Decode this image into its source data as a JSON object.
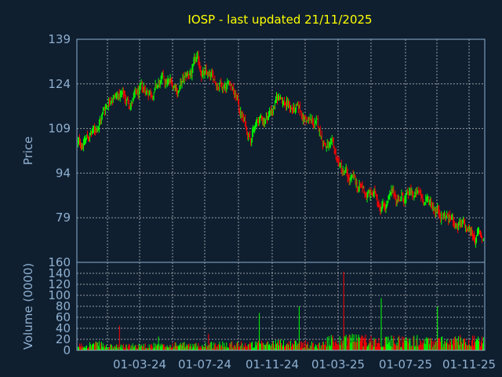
{
  "chart_data": [
    {
      "type": "candlestick",
      "title": "IOSP - last updated 21/11/2025",
      "ylabel": "Price",
      "ylim": [
        64,
        139
      ],
      "yticks": [
        "139",
        "124",
        "109",
        "94",
        "79"
      ],
      "xticks": [
        "01-03-24",
        "01-07-24",
        "01-11-24",
        "01-03-25",
        "01-07-25",
        "01-11-25"
      ],
      "grid": true,
      "up_color": "#00ff00",
      "down_color": "#ff0000",
      "series": [
        {
          "x": [
            "11-23",
            "12-23",
            "01-24",
            "02-24",
            "03-24",
            "04-24",
            "05-24",
            "06-24",
            "07-24",
            "08-24",
            "09-24",
            "10-24",
            "11-24",
            "12-24",
            "01-25",
            "02-25",
            "03-25",
            "04-25",
            "05-25",
            "06-25",
            "07-25",
            "08-25",
            "09-25",
            "10-25",
            "11-25"
          ],
          "close": [
            104,
            108,
            122,
            118,
            121,
            124,
            123,
            130,
            124,
            126,
            108,
            112,
            120,
            114,
            110,
            101,
            91,
            87,
            85,
            86,
            86,
            84,
            79,
            74,
            72
          ]
        }
      ]
    },
    {
      "type": "bar",
      "ylabel": "Volume (0000)",
      "ylim": [
        0,
        160
      ],
      "yticks": [
        "160",
        "140",
        "120",
        "100",
        "80",
        "60",
        "40",
        "20",
        "0"
      ],
      "series": [
        {
          "x": [
            "11-23",
            "12-23",
            "01-24",
            "02-24",
            "03-24",
            "04-24",
            "05-24",
            "06-24",
            "07-24",
            "08-24",
            "09-24",
            "10-24",
            "11-24",
            "12-24",
            "01-25",
            "02-25",
            "03-25",
            "04-25",
            "05-25",
            "06-25",
            "07-25",
            "08-25",
            "09-25",
            "10-25",
            "11-25"
          ],
          "values": [
            10,
            12,
            8,
            9,
            10,
            9,
            11,
            10,
            12,
            14,
            12,
            13,
            15,
            14,
            12,
            20,
            25,
            22,
            18,
            20,
            20,
            18,
            20,
            22,
            18
          ],
          "spikes": [
            45,
            25,
            30,
            68,
            80,
            143,
            95,
            80
          ]
        }
      ]
    }
  ]
}
